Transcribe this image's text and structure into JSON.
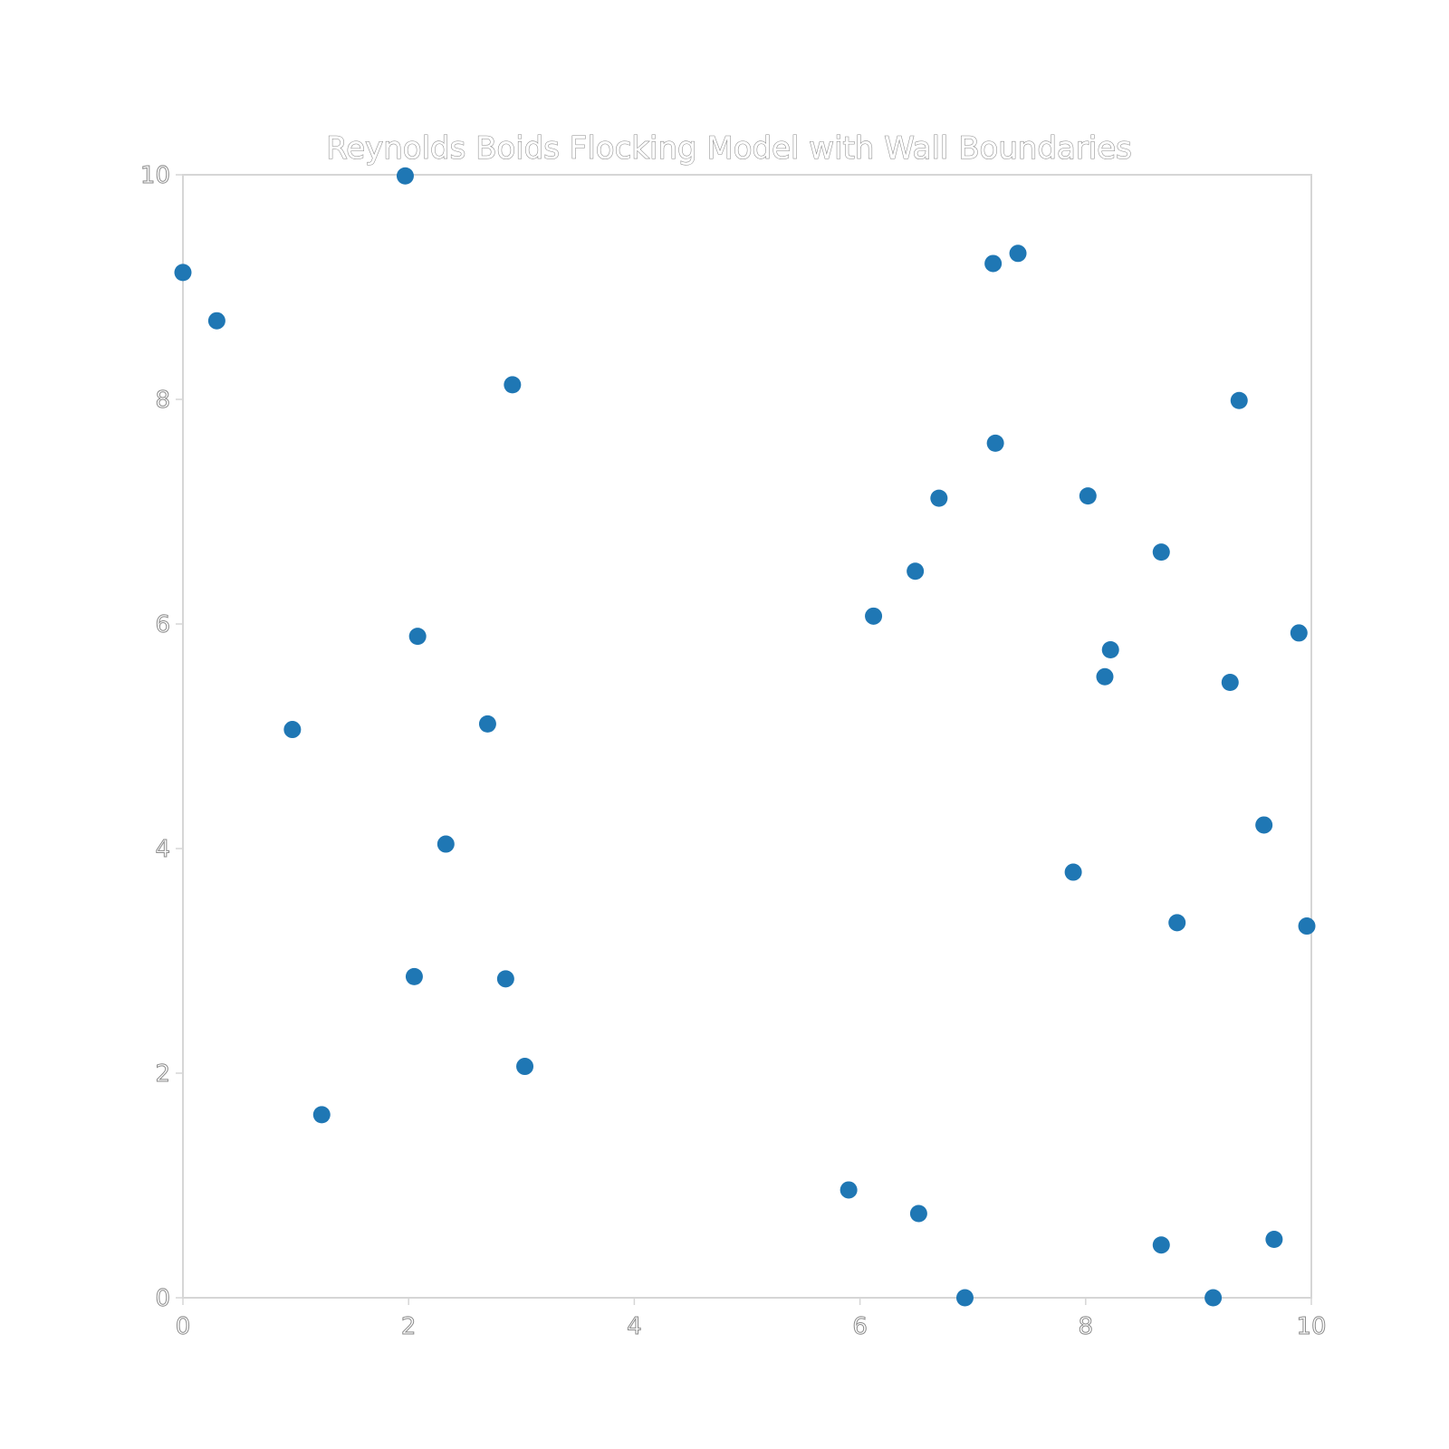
{
  "chart_data": {
    "type": "scatter",
    "title": "Reynolds Boids Flocking Model with Wall Boundaries",
    "xlabel": "",
    "ylabel": "",
    "xlim": [
      0,
      10
    ],
    "ylim": [
      0,
      10
    ],
    "xticks": [
      "0",
      "2",
      "4",
      "6",
      "8",
      "10"
    ],
    "yticks": [
      "0",
      "2",
      "4",
      "6",
      "8",
      "10"
    ],
    "grid": false,
    "marker_color": "#1f77b4",
    "points": [
      {
        "x": 0.0,
        "y": 9.13
      },
      {
        "x": 0.3,
        "y": 8.7
      },
      {
        "x": 1.97,
        "y": 9.99
      },
      {
        "x": 2.92,
        "y": 8.13
      },
      {
        "x": 0.97,
        "y": 5.06
      },
      {
        "x": 2.08,
        "y": 5.89
      },
      {
        "x": 2.7,
        "y": 5.11
      },
      {
        "x": 2.33,
        "y": 4.04
      },
      {
        "x": 2.05,
        "y": 2.86
      },
      {
        "x": 2.86,
        "y": 2.84
      },
      {
        "x": 3.03,
        "y": 2.06
      },
      {
        "x": 1.23,
        "y": 1.63
      },
      {
        "x": 5.9,
        "y": 0.96
      },
      {
        "x": 6.52,
        "y": 0.75
      },
      {
        "x": 6.93,
        "y": 0.0
      },
      {
        "x": 7.18,
        "y": 9.21
      },
      {
        "x": 7.4,
        "y": 9.3
      },
      {
        "x": 7.2,
        "y": 7.61
      },
      {
        "x": 6.7,
        "y": 7.12
      },
      {
        "x": 6.49,
        "y": 6.47
      },
      {
        "x": 6.12,
        "y": 6.07
      },
      {
        "x": 8.02,
        "y": 7.14
      },
      {
        "x": 8.67,
        "y": 6.64
      },
      {
        "x": 8.22,
        "y": 5.77
      },
      {
        "x": 8.17,
        "y": 5.53
      },
      {
        "x": 9.36,
        "y": 7.99
      },
      {
        "x": 9.89,
        "y": 5.92
      },
      {
        "x": 9.28,
        "y": 5.48
      },
      {
        "x": 9.58,
        "y": 4.21
      },
      {
        "x": 7.89,
        "y": 3.79
      },
      {
        "x": 8.81,
        "y": 3.34
      },
      {
        "x": 9.96,
        "y": 3.31
      },
      {
        "x": 8.67,
        "y": 0.47
      },
      {
        "x": 9.67,
        "y": 0.52
      },
      {
        "x": 9.13,
        "y": 0.0
      }
    ]
  }
}
